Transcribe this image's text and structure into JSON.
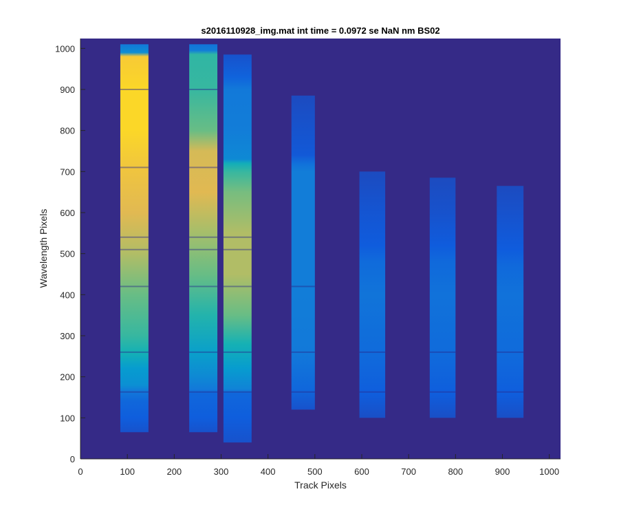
{
  "chart_data": {
    "type": "heatmap",
    "title": "s2016110928_img.mat int time = 0.0972 se  NaN nm BS02",
    "xlabel": "Track Pixels",
    "ylabel": "Wavelength Pixels",
    "xlim": [
      0,
      1024
    ],
    "ylim": [
      0,
      1024
    ],
    "xticks": [
      0,
      100,
      200,
      300,
      400,
      500,
      600,
      700,
      800,
      900,
      1000
    ],
    "yticks": [
      0,
      100,
      200,
      300,
      400,
      500,
      600,
      700,
      800,
      900,
      1000
    ],
    "colormap": "parula",
    "background_color": "#352A87",
    "colors": {
      "axis": "#262626",
      "low": "#352A87",
      "mid_blue": "#0F5CDD",
      "cyan": "#1AAFD0",
      "teal": "#3ECA8A",
      "orange": "#F6B83B",
      "yellow": "#F9E21C"
    },
    "tracks": [
      {
        "x_range": [
          85,
          145
        ],
        "y_range": [
          65,
          1010
        ],
        "profile": [
          [
            65,
            0.12
          ],
          [
            100,
            0.16
          ],
          [
            140,
            0.2
          ],
          [
            165,
            0.28
          ],
          [
            180,
            0.36
          ],
          [
            220,
            0.4
          ],
          [
            260,
            0.5
          ],
          [
            300,
            0.55
          ],
          [
            400,
            0.62
          ],
          [
            500,
            0.72
          ],
          [
            600,
            0.8
          ],
          [
            700,
            0.85
          ],
          [
            800,
            0.92
          ],
          [
            900,
            0.92
          ],
          [
            980,
            0.88
          ],
          [
            990,
            0.35
          ],
          [
            1010,
            0.28
          ]
        ],
        "dark_lines": [
          163,
          260,
          420,
          510,
          540,
          710,
          900
        ]
      },
      {
        "x_range": [
          232,
          292
        ],
        "y_range": [
          65,
          1010
        ],
        "profile": [
          [
            65,
            0.12
          ],
          [
            100,
            0.16
          ],
          [
            160,
            0.2
          ],
          [
            170,
            0.28
          ],
          [
            200,
            0.34
          ],
          [
            260,
            0.42
          ],
          [
            350,
            0.52
          ],
          [
            450,
            0.62
          ],
          [
            550,
            0.7
          ],
          [
            650,
            0.8
          ],
          [
            750,
            0.78
          ],
          [
            800,
            0.62
          ],
          [
            900,
            0.55
          ],
          [
            985,
            0.54
          ],
          [
            995,
            0.3
          ],
          [
            1010,
            0.26
          ]
        ],
        "dark_lines": [
          163,
          260,
          420,
          510,
          540,
          710,
          900
        ]
      },
      {
        "x_range": [
          305,
          365
        ],
        "y_range": [
          40,
          985
        ],
        "profile": [
          [
            40,
            0.12
          ],
          [
            100,
            0.16
          ],
          [
            160,
            0.2
          ],
          [
            170,
            0.32
          ],
          [
            220,
            0.4
          ],
          [
            280,
            0.5
          ],
          [
            350,
            0.62
          ],
          [
            450,
            0.72
          ],
          [
            550,
            0.72
          ],
          [
            650,
            0.64
          ],
          [
            700,
            0.55
          ],
          [
            720,
            0.48
          ],
          [
            730,
            0.34
          ],
          [
            800,
            0.3
          ],
          [
            900,
            0.28
          ],
          [
            930,
            0.18
          ],
          [
            985,
            0.12
          ]
        ],
        "dark_lines": [
          163,
          260,
          420,
          510,
          540
        ]
      },
      {
        "x_range": [
          450,
          500
        ],
        "y_range": [
          120,
          885
        ],
        "profile": [
          [
            120,
            0.12
          ],
          [
            170,
            0.2
          ],
          [
            260,
            0.28
          ],
          [
            400,
            0.3
          ],
          [
            550,
            0.3
          ],
          [
            700,
            0.3
          ],
          [
            720,
            0.24
          ],
          [
            740,
            0.14
          ],
          [
            885,
            0.1
          ]
        ],
        "dark_lines": [
          163,
          260,
          420
        ]
      },
      {
        "x_range": [
          595,
          650
        ],
        "y_range": [
          100,
          700
        ],
        "profile": [
          [
            100,
            0.11
          ],
          [
            160,
            0.16
          ],
          [
            260,
            0.22
          ],
          [
            400,
            0.26
          ],
          [
            480,
            0.22
          ],
          [
            520,
            0.15
          ],
          [
            600,
            0.13
          ],
          [
            700,
            0.1
          ]
        ],
        "dark_lines": [
          163,
          260
        ]
      },
      {
        "x_range": [
          745,
          800
        ],
        "y_range": [
          100,
          685
        ],
        "profile": [
          [
            100,
            0.11
          ],
          [
            160,
            0.16
          ],
          [
            260,
            0.22
          ],
          [
            400,
            0.25
          ],
          [
            480,
            0.21
          ],
          [
            520,
            0.15
          ],
          [
            600,
            0.12
          ],
          [
            685,
            0.1
          ]
        ],
        "dark_lines": [
          163,
          260
        ]
      },
      {
        "x_range": [
          888,
          945
        ],
        "y_range": [
          100,
          665
        ],
        "profile": [
          [
            100,
            0.11
          ],
          [
            160,
            0.16
          ],
          [
            260,
            0.22
          ],
          [
            400,
            0.25
          ],
          [
            470,
            0.21
          ],
          [
            510,
            0.15
          ],
          [
            600,
            0.12
          ],
          [
            665,
            0.1
          ]
        ],
        "dark_lines": [
          163,
          260
        ]
      }
    ]
  }
}
